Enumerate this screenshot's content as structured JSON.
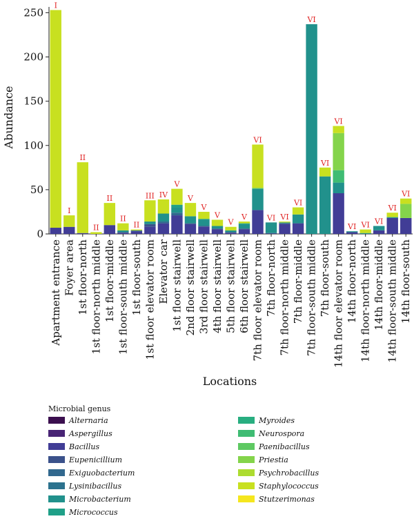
{
  "chart_data": {
    "type": "bar",
    "stacked": true,
    "xlabel": "Locations",
    "ylabel": "Abundance",
    "ylim": [
      0,
      255
    ],
    "yticks": [
      0,
      50,
      100,
      150,
      200,
      250
    ],
    "grid": false,
    "legend_title": "Microbial genus",
    "legend_position": "bottom",
    "categories": [
      "Apartment entrance",
      "Foyer area",
      "1st floor-north",
      "1st floor-north middle",
      "1st floor-middle",
      "1st floor-south middle",
      "1st floor-south",
      "1st floor elevator room",
      "Elevator car",
      "1st floor stairwell",
      "2nd floor stairwell",
      "3rd floor stairwell",
      "4th floor stairwell",
      "5th floor stairwell",
      "6th floor stairwell",
      "7th floor elevator room",
      "7th floor-north",
      "7th floor-north middle",
      "7th floor-middle",
      "7th floor-south middle",
      "7th floor-south",
      "14th floor elevator room",
      "14th floor-north",
      "14th floor-north middle",
      "14th floor-middle",
      "14th floor-south middle",
      "14th floor-south"
    ],
    "group_labels": [
      "I",
      "I",
      "II",
      "II",
      "II",
      "II",
      "II",
      "III",
      "IV",
      "V",
      "V",
      "V",
      "V",
      "V",
      "V",
      "VI",
      "VI",
      "VI",
      "VI",
      "VI",
      "VI",
      "VI",
      "VI",
      "VI",
      "VI",
      "VI",
      "VI"
    ],
    "series": [
      {
        "name": "Alternaria",
        "color": "#3b0f4f",
        "values": [
          0,
          0,
          0,
          0,
          0,
          0,
          0,
          0,
          0,
          0,
          0,
          0,
          0,
          0,
          0,
          0,
          0,
          0,
          0,
          0,
          0,
          0,
          0,
          0,
          0,
          0,
          0
        ]
      },
      {
        "name": "Aspergillus",
        "color": "#482475",
        "values": [
          0,
          0,
          0,
          0,
          0,
          0,
          0,
          0,
          0,
          0,
          0,
          0,
          0,
          0,
          0,
          0,
          0,
          0,
          0,
          0,
          0,
          0,
          0,
          0,
          0,
          0,
          0
        ]
      },
      {
        "name": "Bacillus",
        "color": "#413d96",
        "values": [
          7,
          8,
          1,
          0,
          10,
          1,
          3,
          8,
          12,
          21,
          11,
          8,
          5,
          1,
          5,
          27,
          0,
          11,
          12,
          0,
          0,
          46,
          2,
          0,
          4,
          18,
          18
        ]
      },
      {
        "name": "Eupenicillium",
        "color": "#3b528b",
        "values": [
          0,
          0,
          0,
          0,
          0,
          1,
          0,
          3,
          0,
          0,
          1,
          1,
          1,
          1,
          1,
          0,
          1,
          1,
          0,
          0,
          0,
          0,
          0,
          0,
          0,
          0,
          0
        ]
      },
      {
        "name": "Exiguobacterium",
        "color": "#31688e",
        "values": [
          0,
          0,
          0,
          0,
          0,
          0,
          1,
          0,
          2,
          3,
          0,
          0,
          0,
          0,
          0,
          0,
          0,
          0,
          0,
          0,
          0,
          0,
          0,
          0,
          0,
          0,
          0
        ]
      },
      {
        "name": "Lysinibacillus",
        "color": "#2c728e",
        "values": [
          0,
          0,
          0,
          0,
          0,
          0,
          0,
          0,
          0,
          0,
          0,
          0,
          0,
          0,
          0,
          0,
          0,
          0,
          0,
          0,
          0,
          0,
          0,
          0,
          0,
          0,
          0
        ]
      },
      {
        "name": "Microbacterium",
        "color": "#21918c",
        "values": [
          0,
          0,
          0,
          0,
          0,
          2,
          0,
          3,
          9,
          6,
          8,
          7,
          3,
          2,
          5,
          24,
          12,
          1,
          10,
          237,
          65,
          12,
          1,
          1,
          5,
          1,
          0
        ]
      },
      {
        "name": "Micrococcus",
        "color": "#1fa088",
        "values": [
          0,
          0,
          0,
          0,
          0,
          0,
          0,
          0,
          0,
          3,
          0,
          1,
          0,
          0,
          1,
          0,
          0,
          0,
          0,
          0,
          0,
          0,
          0,
          0,
          0,
          0,
          0
        ]
      },
      {
        "name": "Myroides",
        "color": "#28ae80",
        "values": [
          0,
          0,
          0,
          0,
          0,
          0,
          0,
          0,
          0,
          0,
          0,
          0,
          0,
          0,
          0,
          0,
          0,
          0,
          0,
          0,
          0,
          0,
          0,
          0,
          0,
          0,
          0
        ]
      },
      {
        "name": "Neurospora",
        "color": "#3fbc73",
        "values": [
          0,
          0,
          0,
          0,
          0,
          0,
          0,
          0,
          0,
          0,
          0,
          0,
          0,
          0,
          0,
          0,
          0,
          0,
          0,
          0,
          0,
          14,
          0,
          0,
          0,
          0,
          0
        ]
      },
      {
        "name": "Paenibacillus",
        "color": "#5ec962",
        "values": [
          0,
          0,
          0,
          0,
          0,
          0,
          0,
          0,
          0,
          0,
          0,
          0,
          0,
          0,
          0,
          1,
          0,
          0,
          0,
          0,
          0,
          0,
          0,
          0,
          0,
          0,
          0
        ]
      },
      {
        "name": "Priestia",
        "color": "#84d44b",
        "values": [
          0,
          0,
          0,
          0,
          0,
          0,
          0,
          0,
          0,
          0,
          0,
          0,
          0,
          0,
          0,
          0,
          0,
          0,
          0,
          0,
          0,
          42,
          0,
          0,
          0,
          0,
          16
        ]
      },
      {
        "name": "Psychrobacillus",
        "color": "#addc30",
        "values": [
          0,
          0,
          0,
          0,
          0,
          0,
          0,
          0,
          0,
          0,
          0,
          0,
          0,
          0,
          0,
          0,
          0,
          0,
          0,
          0,
          0,
          0,
          0,
          0,
          0,
          0,
          0
        ]
      },
      {
        "name": "Staphylococcus",
        "color": "#c8e020",
        "values": [
          246,
          13,
          80,
          2,
          25,
          8,
          1,
          24,
          16,
          18,
          15,
          8,
          7,
          4,
          2,
          49,
          0,
          1,
          8,
          0,
          10,
          8,
          0,
          4,
          0,
          5,
          6
        ]
      },
      {
        "name": "Stutzerimonas",
        "color": "#f5e61e",
        "values": [
          0,
          0,
          0,
          0,
          0,
          0,
          0,
          0,
          0,
          0,
          0,
          0,
          0,
          0,
          0,
          0,
          0,
          0,
          0,
          0,
          0,
          0,
          0,
          0,
          0,
          0,
          0
        ]
      }
    ]
  }
}
